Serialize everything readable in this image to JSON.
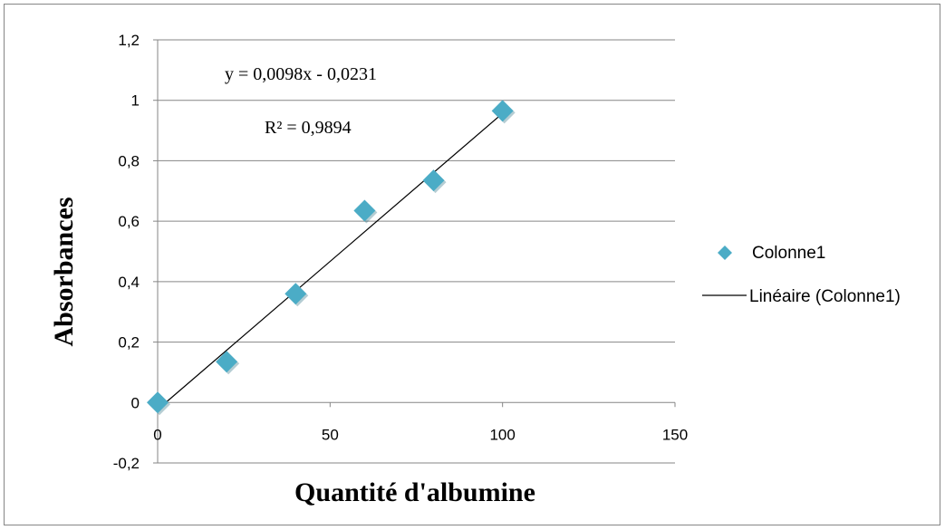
{
  "chart_data": {
    "type": "scatter",
    "x_axis": {
      "title": "Quantité d'albumine",
      "range": [
        0,
        150
      ],
      "ticks": [
        0,
        50,
        100,
        150
      ],
      "tick_labels": [
        "0",
        "50",
        "100",
        "150"
      ]
    },
    "y_axis": {
      "title": "Absorbances",
      "range": [
        -0.2,
        1.2
      ],
      "ticks": [
        -0.2,
        0,
        0.2,
        0.4,
        0.6,
        0.8,
        1,
        1.2
      ],
      "tick_labels": [
        "-0,2",
        "0",
        "0,2",
        "0,4",
        "0,6",
        "0,8",
        "1",
        "1,2"
      ]
    },
    "grid": "horizontal",
    "series": [
      {
        "name": "Colonne1",
        "marker": "diamond",
        "color": "#4bacc6",
        "points": [
          {
            "x": 0,
            "y": 0
          },
          {
            "x": 20,
            "y": 0.135
          },
          {
            "x": 40,
            "y": 0.36
          },
          {
            "x": 60,
            "y": 0.635
          },
          {
            "x": 80,
            "y": 0.735
          },
          {
            "x": 100,
            "y": 0.965
          }
        ]
      }
    ],
    "trendline": {
      "name": "Linéaire (Colonne1)",
      "type": "linear",
      "slope": 0.0098,
      "intercept": -0.0231,
      "x_range": [
        0,
        100
      ],
      "color": "#000000",
      "equation_label": "y = 0,0098x - 0,0231",
      "r2_label": "R² = 0,9894"
    },
    "legend": {
      "position": "right",
      "entries": [
        "Colonne1",
        "Linéaire (Colonne1)"
      ]
    }
  }
}
